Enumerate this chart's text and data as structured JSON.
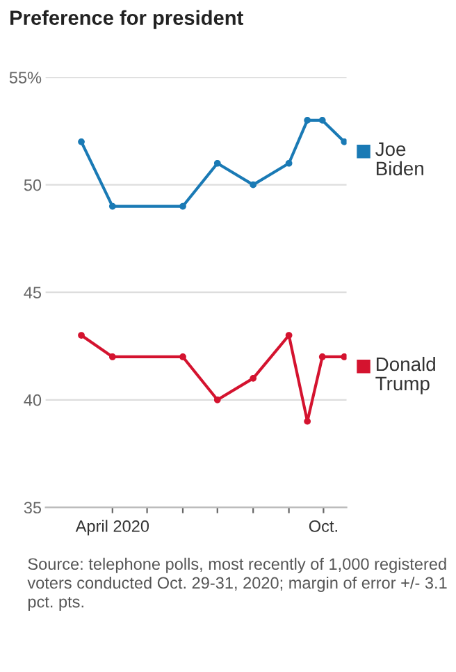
{
  "chart_data": {
    "type": "line",
    "title": "Preference for president",
    "x": [
      "2020-03-05",
      "2020-04-01",
      "2020-06-01",
      "2020-07-01",
      "2020-08-01",
      "2020-09-01",
      "2020-09-17",
      "2020-09-30",
      "2020-10-19"
    ],
    "series": [
      {
        "name": "Joe\nBiden",
        "color": "#1a7ab5",
        "values": [
          52,
          49,
          49,
          51,
          50,
          51,
          53,
          53,
          52
        ]
      },
      {
        "name": "Donald\nTrump",
        "color": "#d4132f",
        "values": [
          43,
          42,
          42,
          40,
          41,
          43,
          39,
          42,
          42
        ]
      }
    ],
    "xlim": [
      "2020-02-03",
      "2020-10-21"
    ],
    "xticks": [
      {
        "value": "2020-04-01",
        "label": "April 2020"
      },
      {
        "value": "2020-05-01",
        "label": null
      },
      {
        "value": "2020-06-01",
        "label": null
      },
      {
        "value": "2020-07-01",
        "label": null
      },
      {
        "value": "2020-08-01",
        "label": null
      },
      {
        "value": "2020-09-01",
        "label": null
      },
      {
        "value": "2020-10-01",
        "label": "Oct."
      }
    ],
    "ylim": [
      35,
      55
    ],
    "yticks": [
      35,
      40,
      45,
      50,
      {
        "value": 55,
        "label": "55%"
      }
    ],
    "grid": "y",
    "legend": "right",
    "marker": "circle",
    "line_style": "solid",
    "annotations": [
      "Source: telephone polls, most recently of 1,000 registered voters conducted Oct. 29-31, 2020; margin of error +/- 3.1 pct. pts."
    ]
  }
}
